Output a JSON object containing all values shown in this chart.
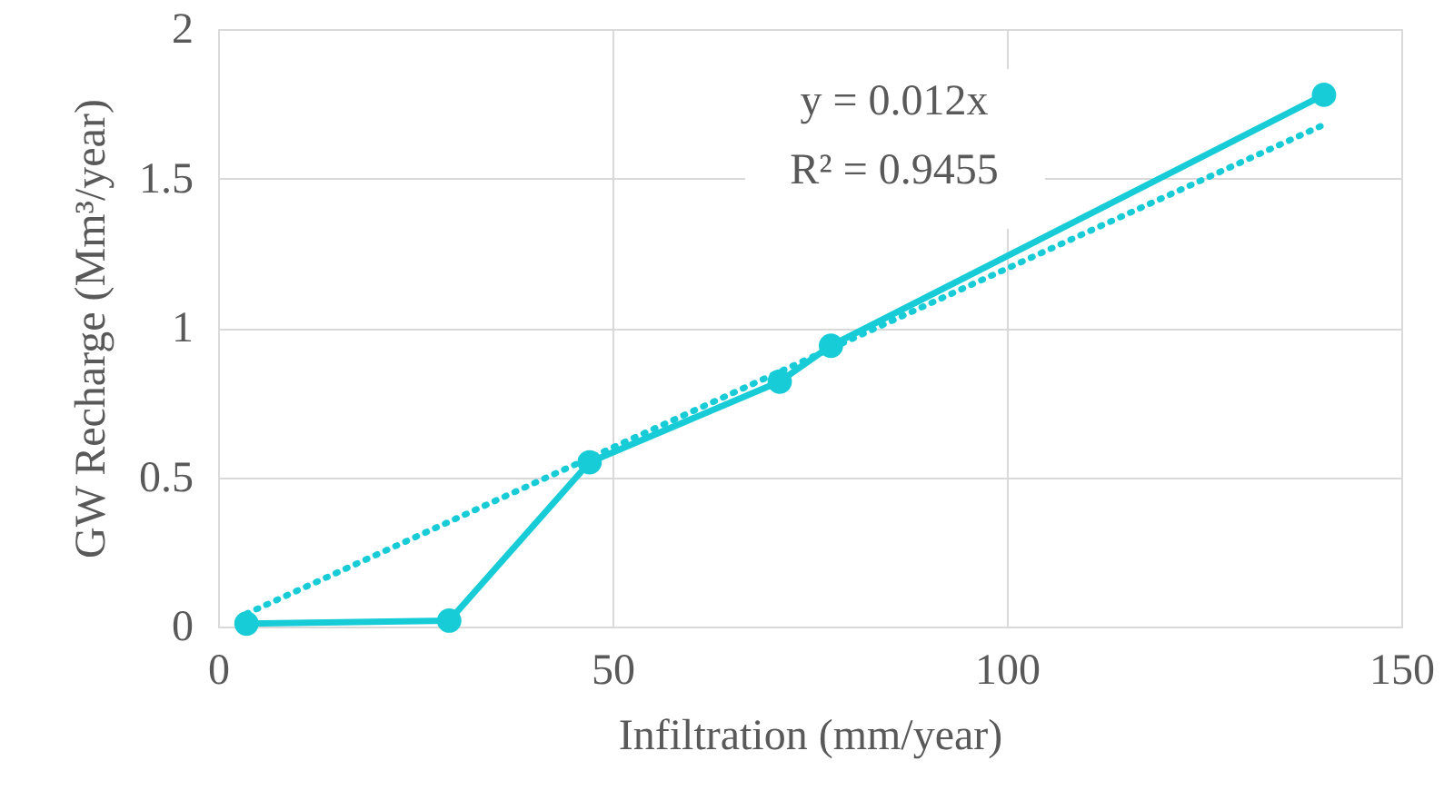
{
  "chart_data": {
    "type": "line",
    "xlabel": "Infiltration (mm/year)",
    "ylabel": "GW Recharge (Mm³/year)",
    "xlim": [
      0,
      150
    ],
    "xticks": [
      0,
      50,
      100,
      150
    ],
    "ylim": [
      0,
      2
    ],
    "yticks": [
      0,
      0.5,
      1,
      1.5,
      2
    ],
    "grid": true,
    "annotations": [
      "y = 0.012x",
      "R² = 0.9455"
    ],
    "series": [
      {
        "color": "#17ccd6",
        "x": [
          3.6,
          29.3,
          47.1,
          71.2,
          77.7,
          140.2
        ],
        "values": [
          0.01,
          0.02,
          0.55,
          0.82,
          0.94,
          1.78
        ],
        "marker": "circle",
        "line_style": "solid"
      },
      {
        "type": "line",
        "color": "#17ccd6",
        "x": [
          3.6,
          140.2
        ],
        "values": [
          0.043,
          1.68
        ],
        "marker": "none",
        "line_style": "dotted"
      }
    ]
  }
}
